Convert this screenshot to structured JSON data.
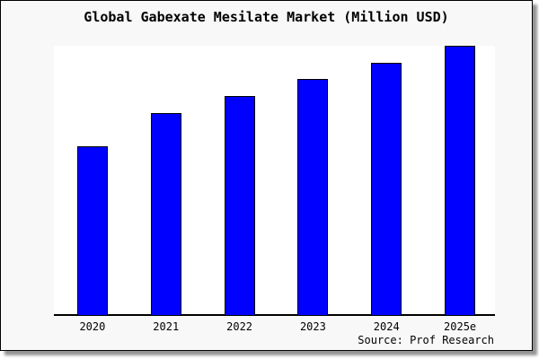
{
  "chart_data": {
    "type": "bar",
    "title": "Global Gabexate Mesilate Market (Million USD)",
    "categories": [
      "2020",
      "2021",
      "2022",
      "2023",
      "2024",
      "2025e"
    ],
    "values": [
      188,
      225,
      244,
      263,
      281,
      300
    ],
    "ylim": [
      0,
      300
    ],
    "units": "relative height (no y-axis scale shown)",
    "xlabel": "",
    "ylabel": "",
    "grid": false,
    "legend": "none",
    "y_axis_visible": false,
    "bar_color": "#0000ff",
    "bar_border_color": "#000000"
  },
  "source": {
    "label": "Source: Prof Research"
  },
  "colors": {
    "panel_background": "#f8f8f8",
    "plot_background": "#ffffff",
    "frame_border": "#000000",
    "shadow": "#949494",
    "text": "#000000"
  }
}
